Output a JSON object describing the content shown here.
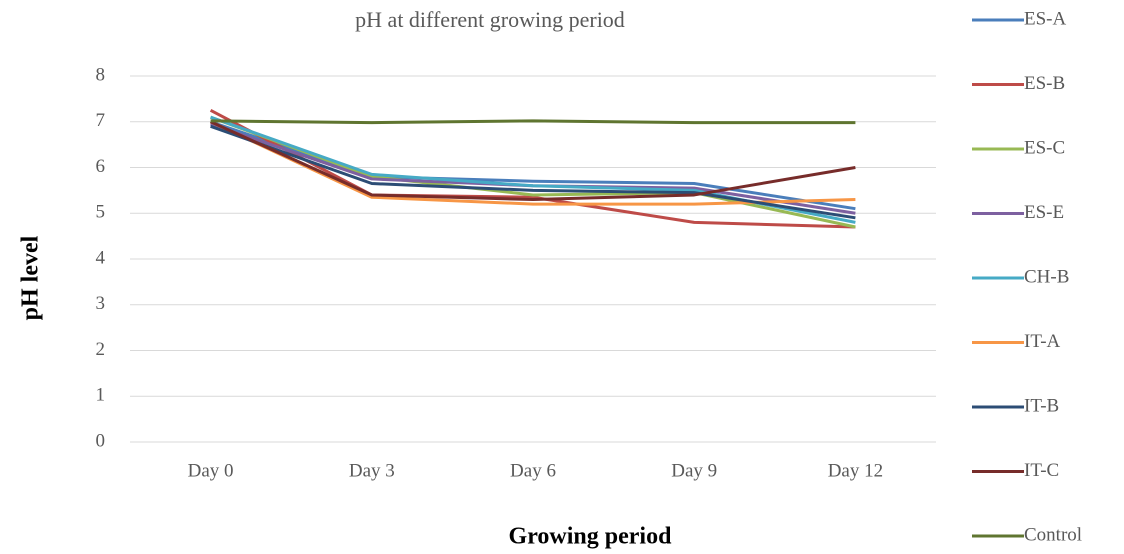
{
  "chart_data": {
    "type": "line",
    "title": "pH at different  growing period",
    "x_label": "Growing period",
    "y_label": "pH level",
    "categories": [
      "Day 0",
      "Day 3",
      "Day 6",
      "Day 9",
      "Day 12"
    ],
    "series": [
      {
        "name": "ES-A",
        "color": "#4a7ebb",
        "values": [
          7.0,
          5.8,
          5.7,
          5.65,
          5.1
        ]
      },
      {
        "name": "ES-B",
        "color": "#be4b48",
        "values": [
          7.25,
          5.4,
          5.35,
          4.8,
          4.7
        ]
      },
      {
        "name": "ES-C",
        "color": "#98b954",
        "values": [
          7.1,
          5.8,
          5.4,
          5.45,
          4.7
        ]
      },
      {
        "name": "ES-E",
        "color": "#7d60a0",
        "values": [
          6.95,
          5.75,
          5.6,
          5.55,
          5.0
        ]
      },
      {
        "name": "CH-B",
        "color": "#46aac5",
        "values": [
          7.1,
          5.85,
          5.6,
          5.5,
          4.8
        ]
      },
      {
        "name": "IT-A",
        "color": "#f79646",
        "values": [
          7.0,
          5.35,
          5.2,
          5.2,
          5.3
        ]
      },
      {
        "name": "IT-B",
        "color": "#2c4d75",
        "values": [
          6.9,
          5.65,
          5.5,
          5.45,
          4.9
        ]
      },
      {
        "name": "IT-C",
        "color": "#772c2a",
        "values": [
          7.0,
          5.4,
          5.3,
          5.4,
          6.0
        ]
      },
      {
        "name": "Control",
        "color": "#5f7530",
        "values": [
          7.02,
          6.98,
          7.02,
          6.98,
          6.98
        ]
      }
    ],
    "ylim": [
      0,
      8
    ],
    "yticks": [
      0,
      1,
      2,
      3,
      4,
      5,
      6,
      7,
      8
    ],
    "grid": true,
    "legend": "right"
  }
}
